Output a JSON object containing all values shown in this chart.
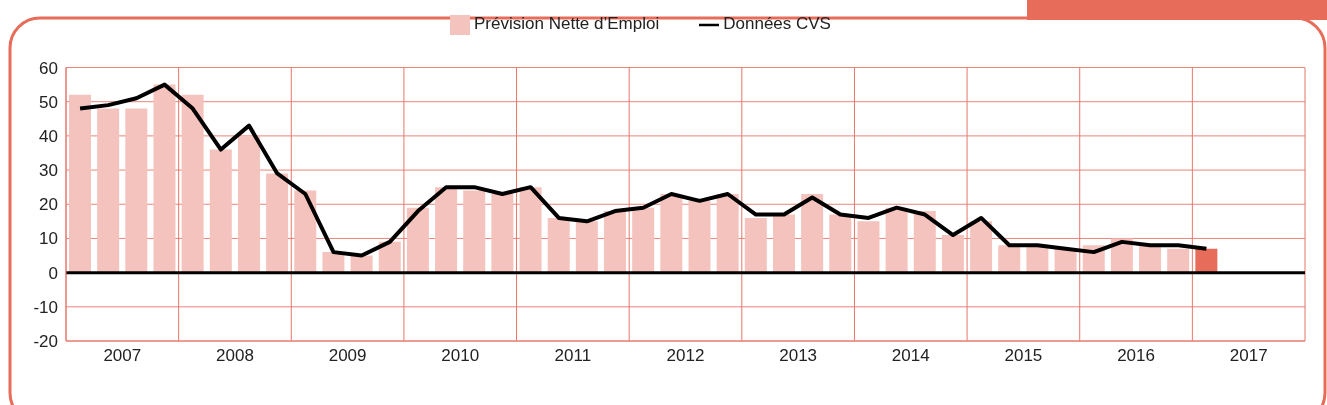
{
  "chart_data": {
    "type": "bar",
    "x": [
      2007.125,
      2007.375,
      2007.625,
      2007.875,
      2008.125,
      2008.375,
      2008.625,
      2008.875,
      2009.125,
      2009.375,
      2009.625,
      2009.875,
      2010.125,
      2010.375,
      2010.625,
      2010.875,
      2011.125,
      2011.375,
      2011.625,
      2011.875,
      2012.125,
      2012.375,
      2012.625,
      2012.875,
      2013.125,
      2013.375,
      2013.625,
      2013.875,
      2014.125,
      2014.375,
      2014.625,
      2014.875,
      2015.125,
      2015.375,
      2015.625,
      2015.875,
      2016.125,
      2016.375,
      2016.625,
      2016.875,
      2017.125
    ],
    "series": [
      {
        "name": "Prévision Nette d’Emploi",
        "color": "#f4c3bd",
        "colors": [
          "#f4c3bd",
          "#f4c3bd",
          "#f4c3bd",
          "#f4c3bd",
          "#f4c3bd",
          "#f4c3bd",
          "#f4c3bd",
          "#f4c3bd",
          "#f4c3bd",
          "#f4c3bd",
          "#f4c3bd",
          "#f4c3bd",
          "#f4c3bd",
          "#f4c3bd",
          "#f4c3bd",
          "#f4c3bd",
          "#f4c3bd",
          "#f4c3bd",
          "#f4c3bd",
          "#f4c3bd",
          "#f4c3bd",
          "#f4c3bd",
          "#f4c3bd",
          "#f4c3bd",
          "#f4c3bd",
          "#f4c3bd",
          "#f4c3bd",
          "#f4c3bd",
          "#f4c3bd",
          "#f4c3bd",
          "#f4c3bd",
          "#f4c3bd",
          "#f4c3bd",
          "#f4c3bd",
          "#f4c3bd",
          "#f4c3bd",
          "#f4c3bd",
          "#f4c3bd",
          "#f4c3bd",
          "#f4c3bd",
          "#e76c5a"
        ],
        "values": [
          52,
          48,
          48,
          55,
          52,
          36,
          40,
          29,
          24,
          6,
          5,
          9,
          19,
          25,
          24,
          23,
          25,
          16,
          15,
          18,
          19,
          23,
          21,
          23,
          16,
          17,
          23,
          17,
          15,
          19,
          18,
          11,
          15,
          8,
          8,
          7,
          8,
          10,
          8,
          7,
          7
        ]
      },
      {
        "name": "Données CVS",
        "type": "line",
        "color": "#000000",
        "values": [
          48,
          49,
          51,
          55,
          48,
          36,
          43,
          29,
          23,
          6,
          5,
          9,
          18,
          25,
          25,
          23,
          25,
          16,
          15,
          18,
          19,
          23,
          21,
          23,
          17,
          17,
          22,
          17,
          16,
          19,
          17,
          11,
          16,
          8,
          8,
          7,
          6,
          9,
          8,
          8,
          7
        ]
      }
    ],
    "xlim": [
      2007,
      2018
    ],
    "xticks": [
      {
        "value": 2007,
        "label": null
      },
      {
        "value": 2007.5,
        "label": "2007"
      },
      {
        "value": 2008,
        "label": null
      },
      {
        "value": 2008.5,
        "label": "2008"
      },
      {
        "value": 2009,
        "label": null
      },
      {
        "value": 2009.5,
        "label": "2009"
      },
      {
        "value": 2010,
        "label": null
      },
      {
        "value": 2010.5,
        "label": "2010"
      },
      {
        "value": 2011,
        "label": null
      },
      {
        "value": 2011.5,
        "label": "2011"
      },
      {
        "value": 2012,
        "label": null
      },
      {
        "value": 2012.5,
        "label": "2012"
      },
      {
        "value": 2013,
        "label": null
      },
      {
        "value": 2013.5,
        "label": "2013"
      },
      {
        "value": 2014,
        "label": null
      },
      {
        "value": 2014.5,
        "label": "2014"
      },
      {
        "value": 2015,
        "label": null
      },
      {
        "value": 2015.5,
        "label": "2015"
      },
      {
        "value": 2016,
        "label": null
      },
      {
        "value": 2016.5,
        "label": "2016"
      },
      {
        "value": 2017,
        "label": null
      },
      {
        "value": 2017.5,
        "label": "2017"
      },
      {
        "value": 2018,
        "label": null
      }
    ],
    "ylim": [
      -20,
      60
    ],
    "yticks": [
      -20,
      -10,
      0,
      10,
      20,
      30,
      40,
      50,
      60
    ],
    "ref_lines": [
      {
        "axis": "y",
        "value": 0,
        "color": "#000000"
      }
    ],
    "grid": true,
    "legend": "top",
    "marker": "none"
  }
}
